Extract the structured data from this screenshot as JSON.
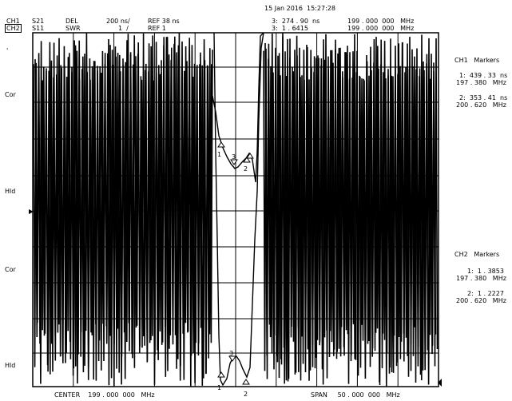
{
  "header": {
    "datetime": "15 Jan 2016  15:27:28",
    "ch1_label": "CH1",
    "ch2_label": "CH2",
    "ch1_param": "S21",
    "ch2_param": "S11",
    "ch1_format": "DEL",
    "ch2_format": "SWR",
    "ch1_scale": "200 ns/",
    "ch2_scale": "1  /",
    "ch1_ref": "REF 38 ns",
    "ch2_ref": "REF 1",
    "ch1_marker_readout": "3:  274 . 90  ns",
    "ch2_marker_readout": "3:  1 . 6415",
    "ch1_marker_freq": "199 . 000  000   MHz",
    "ch2_marker_freq": "199 . 000  000   MHz"
  },
  "left_labels": {
    "dot": "'",
    "cor1": "Cor",
    "hld1": "Hld",
    "cor2": "Cor",
    "hld2": "Hld"
  },
  "ch1_markers": {
    "title": "CH1   Markers",
    "m1_line1": "1:  439 . 33  ns",
    "m1_line2": "197 . 380   MHz",
    "m2_line1": "2:  353 . 41  ns",
    "m2_line2": "200 . 620   MHz"
  },
  "ch2_markers": {
    "title": "CH2   Markers",
    "m1_line1": "1:  1 . 3853",
    "m1_line2": "197 . 380   MHz",
    "m2_line1": "2:  1 . 2227",
    "m2_line2": "200 . 620   MHz"
  },
  "footer": {
    "center": "CENTER    199 . 000  000   MHz",
    "span": "SPAN     50 . 000  000   MHz"
  },
  "marker_labels": {
    "m1": "1",
    "m2": "2",
    "m3": "3"
  },
  "colors": {
    "trace": "#000000",
    "background": "#ffffff",
    "grid": "#000000"
  }
}
